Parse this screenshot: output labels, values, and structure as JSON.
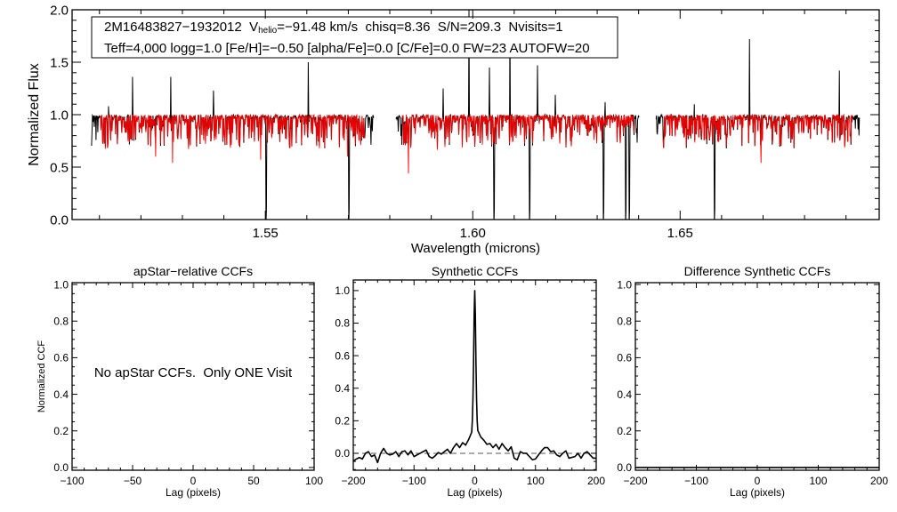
{
  "chart_data": [
    {
      "type": "line",
      "xlabel": "Wavelength (microns)",
      "ylabel": "Normalized Flux",
      "xlim": [
        1.5034,
        1.698
      ],
      "ylim": [
        0,
        2
      ],
      "xticks": [
        1.55,
        1.6,
        1.65
      ],
      "xtick_labels": [
        "1.55",
        "1.60",
        "1.65"
      ],
      "yticks": [
        0,
        0.5,
        1.0,
        1.5,
        2.0
      ],
      "ytick_labels": [
        "0.0",
        "0.5",
        "1.0",
        "1.5",
        "2.0"
      ],
      "annotation": {
        "line1_a": "2M16483827−1932012  V",
        "line1_sub": "helio",
        "line1_b": "=−91.48 km/s  chisq=8.36  S/N=209.3  Nvisits=1",
        "line2": "Teff=4,000 logg=1.0 [Fe/H]=−0.50 [alpha/Fe]=0.0 [C/Fe]=0.0 FW=23 AUTOFW=20"
      },
      "series": [
        {
          "name": "observed",
          "color": "#000000",
          "segments": [
            [
              1.5081,
              1.5762
            ],
            [
              1.5815,
              1.6401
            ],
            [
              1.6442,
              1.6933
            ]
          ],
          "continuum": 0.95,
          "emission_spikes": [
            [
              1.5122,
              1.08
            ],
            [
              1.518,
              1.36
            ],
            [
              1.5272,
              1.36
            ],
            [
              1.5375,
              1.23
            ],
            [
              1.5603,
              1.5
            ],
            [
              1.5929,
              1.25
            ],
            [
              1.5991,
              2.0
            ],
            [
              1.604,
              1.45
            ],
            [
              1.609,
              1.9
            ],
            [
              1.6156,
              1.47
            ],
            [
              1.6199,
              1.19
            ],
            [
              1.6319,
              1.12
            ],
            [
              1.6534,
              1.1
            ],
            [
              1.6667,
              1.72
            ],
            [
              1.6884,
              1.42
            ]
          ],
          "saturated_absorption": [
            1.5502,
            1.5701,
            1.6051,
            1.6137,
            1.6315,
            1.6369,
            1.6377,
            1.6583
          ]
        },
        {
          "name": "model",
          "color": "#ff0000",
          "segments": [
            [
              1.5101,
              1.574
            ],
            [
              1.583,
              1.639
            ],
            [
              1.6459,
              1.6916
            ]
          ],
          "deep_dips": [
            [
              1.5236,
              0.6
            ],
            [
              1.5276,
              0.54
            ],
            [
              1.5489,
              0.57
            ],
            [
              1.5698,
              0.6
            ],
            [
              1.5845,
              0.44
            ],
            [
              1.6695,
              0.54
            ]
          ]
        }
      ]
    },
    {
      "type": "line",
      "title": "apStar−relative CCFs",
      "xlabel": "Lag (pixels)",
      "ylabel": "Normalized CCF",
      "xlim": [
        -100,
        100
      ],
      "ylim": [
        -0.015,
        1.01
      ],
      "xticks": [
        -100,
        -50,
        0,
        50,
        100
      ],
      "xtick_labels": [
        "−100",
        "−50",
        "0",
        "50",
        "100"
      ],
      "yticks": [
        0,
        0.2,
        0.4,
        0.6,
        0.8,
        1.0
      ],
      "ytick_labels": [
        "0.0",
        "0.2",
        "0.4",
        "0.6",
        "0.8",
        "1.0"
      ],
      "note": "No apStar CCFs.  Only ONE Visit",
      "series": []
    },
    {
      "type": "line",
      "title": "Synthetic CCFs",
      "xlabel": "Lag (pixels)",
      "ylabel": "",
      "xlim": [
        -200,
        200
      ],
      "ylim": [
        -0.104,
        1.065
      ],
      "xticks": [
        -200,
        -100,
        0,
        100,
        200
      ],
      "xtick_labels": [
        "−200",
        "−100",
        "0",
        "100",
        "200"
      ],
      "yticks": [
        0,
        0.2,
        0.4,
        0.6,
        0.8,
        1.0
      ],
      "ytick_labels": [
        "0.0",
        "0.2",
        "0.4",
        "0.6",
        "0.8",
        "1.0"
      ],
      "reference_line": {
        "y": 0.0,
        "style": "dashed"
      },
      "series": [
        {
          "name": "synthetic CCF",
          "color": "#000000",
          "x": [
            -200,
            -195,
            -190,
            -185,
            -180,
            -175,
            -170,
            -165,
            -160,
            -155,
            -150,
            -145,
            -140,
            -135,
            -130,
            -125,
            -120,
            -115,
            -110,
            -105,
            -100,
            -95,
            -90,
            -85,
            -80,
            -75,
            -70,
            -65,
            -60,
            -55,
            -50,
            -45,
            -40,
            -35,
            -30,
            -25,
            -20,
            -15,
            -10,
            -5,
            -4,
            -3,
            -2,
            -1,
            0,
            1,
            2,
            3,
            4,
            5,
            10,
            15,
            20,
            25,
            30,
            35,
            40,
            45,
            50,
            55,
            60,
            65,
            70,
            75,
            80,
            85,
            90,
            95,
            100,
            105,
            110,
            115,
            120,
            125,
            130,
            135,
            140,
            145,
            150,
            155,
            160,
            165,
            170,
            175,
            180,
            185,
            190,
            195,
            200
          ],
          "y": [
            -0.048,
            -0.035,
            -0.026,
            -0.035,
            0.0,
            0.01,
            -0.02,
            -0.01,
            -0.057,
            0.0,
            0.03,
            0.0,
            -0.01,
            -0.005,
            0.01,
            -0.02,
            0.01,
            0.015,
            -0.01,
            0.015,
            -0.02,
            -0.01,
            0.0,
            0.01,
            0.02,
            -0.02,
            -0.03,
            -0.015,
            0.005,
            -0.005,
            0.01,
            0.025,
            0.0,
            0.035,
            0.06,
            0.035,
            0.065,
            0.05,
            0.085,
            0.13,
            0.2,
            0.33,
            0.55,
            0.85,
            1.0,
            0.85,
            0.55,
            0.33,
            0.2,
            0.14,
            0.1,
            0.08,
            0.055,
            0.06,
            0.035,
            0.055,
            0.025,
            0.06,
            0.035,
            0.015,
            0.04,
            -0.03,
            -0.04,
            0.01,
            0.0,
            0.0,
            -0.02,
            -0.04,
            -0.035,
            -0.01,
            0.015,
            0.035,
            0.035,
            0.01,
            0.015,
            -0.01,
            -0.02,
            0.0,
            0.015,
            -0.03,
            -0.025,
            -0.02,
            0.0,
            -0.03,
            0.0,
            0.01,
            -0.01,
            -0.03,
            -0.03
          ]
        }
      ]
    },
    {
      "type": "line",
      "title": "Difference Synthetic CCFs",
      "xlabel": "Lag (pixels)",
      "ylabel": "",
      "xlim": [
        -200,
        200
      ],
      "ylim": [
        -0.015,
        1.01
      ],
      "xticks": [
        -200,
        -100,
        0,
        100,
        200
      ],
      "xtick_labels": [
        "−200",
        "−100",
        "0",
        "100",
        "200"
      ],
      "yticks": [
        0,
        0.2,
        0.4,
        0.6,
        0.8,
        1.0
      ],
      "ytick_labels": [
        "0.0",
        "0.2",
        "0.4",
        "0.6",
        "0.8",
        "1.0"
      ],
      "series": [
        {
          "name": "difference CCF",
          "color": "#000000",
          "x": [
            -200,
            200
          ],
          "y": [
            0.0,
            0.0
          ]
        }
      ]
    }
  ]
}
